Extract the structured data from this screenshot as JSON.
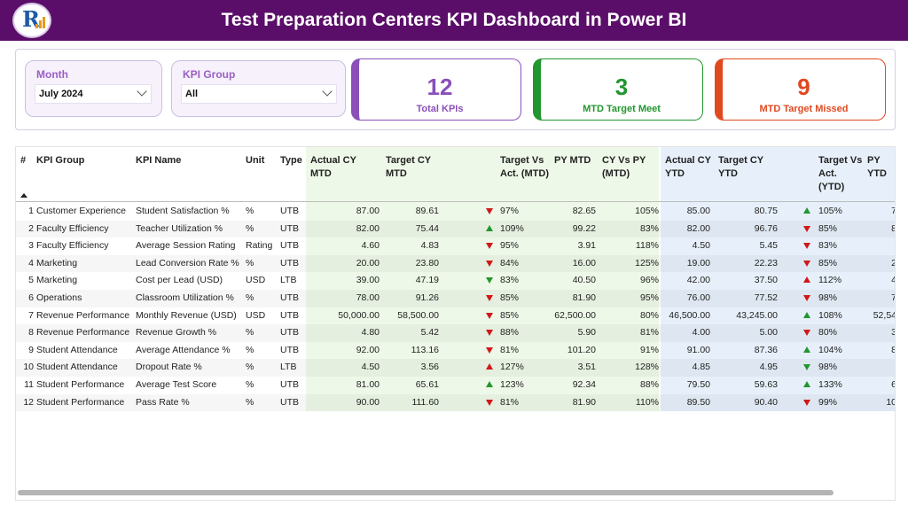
{
  "header": {
    "title": "Test Preparation Centers KPI Dashboard in Power BI",
    "colors": {
      "header_bg": "#5b0e69",
      "accent": "#9a5fc4"
    }
  },
  "filters": {
    "month": {
      "label": "Month",
      "value": "July 2024"
    },
    "kpi_group": {
      "label": "KPI Group",
      "value": "All"
    }
  },
  "cards": [
    {
      "value": "12",
      "label": "Total KPIs",
      "color": "#8a4fb8"
    },
    {
      "value": "3",
      "label": "MTD Target Meet",
      "color": "#22962f"
    },
    {
      "value": "9",
      "label": "MTD Target Missed",
      "color": "#e0491f"
    }
  ],
  "table": {
    "headers": [
      "#",
      "KPI Group",
      "KPI Name",
      "Unit",
      "Type",
      "Actual CY MTD",
      "Target CY MTD",
      "Target Vs Act. (MTD)",
      "PY MTD",
      "CY Vs PY (MTD)",
      "Actual CY YTD",
      "Target CY YTD",
      "Target Vs Act. (YTD)",
      "PY YTD"
    ],
    "rows": [
      {
        "n": "1",
        "group": "Customer Experience",
        "name": "Student Satisfaction %",
        "unit": "%",
        "type": "UTB",
        "act_mtd": "87.00",
        "tgt_mtd": "89.61",
        "mtd_icon": "down-red",
        "mtd_pct": "97%",
        "py_mtd": "82.65",
        "cy_py": "105%",
        "act_ytd": "85.00",
        "tgt_ytd": "80.75",
        "ytd_icon": "up-green",
        "ytd_pct": "105%",
        "py_ytd": "7"
      },
      {
        "n": "2",
        "group": "Faculty Efficiency",
        "name": "Teacher Utilization %",
        "unit": "%",
        "type": "UTB",
        "act_mtd": "82.00",
        "tgt_mtd": "75.44",
        "mtd_icon": "up-green",
        "mtd_pct": "109%",
        "py_mtd": "99.22",
        "cy_py": "83%",
        "act_ytd": "82.00",
        "tgt_ytd": "96.76",
        "ytd_icon": "down-red",
        "ytd_pct": "85%",
        "py_ytd": "8"
      },
      {
        "n": "3",
        "group": "Faculty Efficiency",
        "name": "Average Session Rating",
        "unit": "Rating",
        "type": "UTB",
        "act_mtd": "4.60",
        "tgt_mtd": "4.83",
        "mtd_icon": "down-red",
        "mtd_pct": "95%",
        "py_mtd": "3.91",
        "cy_py": "118%",
        "act_ytd": "4.50",
        "tgt_ytd": "5.45",
        "ytd_icon": "down-red",
        "ytd_pct": "83%",
        "py_ytd": ""
      },
      {
        "n": "4",
        "group": "Marketing",
        "name": "Lead Conversion Rate %",
        "unit": "%",
        "type": "UTB",
        "act_mtd": "20.00",
        "tgt_mtd": "23.80",
        "mtd_icon": "down-red",
        "mtd_pct": "84%",
        "py_mtd": "16.00",
        "cy_py": "125%",
        "act_ytd": "19.00",
        "tgt_ytd": "22.23",
        "ytd_icon": "down-red",
        "ytd_pct": "85%",
        "py_ytd": "2"
      },
      {
        "n": "5",
        "group": "Marketing",
        "name": "Cost per Lead (USD)",
        "unit": "USD",
        "type": "LTB",
        "act_mtd": "39.00",
        "tgt_mtd": "47.19",
        "mtd_icon": "down-green",
        "mtd_pct": "83%",
        "py_mtd": "40.50",
        "cy_py": "96%",
        "act_ytd": "42.00",
        "tgt_ytd": "37.50",
        "ytd_icon": "up-red",
        "ytd_pct": "112%",
        "py_ytd": "4"
      },
      {
        "n": "6",
        "group": "Operations",
        "name": "Classroom Utilization %",
        "unit": "%",
        "type": "UTB",
        "act_mtd": "78.00",
        "tgt_mtd": "91.26",
        "mtd_icon": "down-red",
        "mtd_pct": "85%",
        "py_mtd": "81.90",
        "cy_py": "95%",
        "act_ytd": "76.00",
        "tgt_ytd": "77.52",
        "ytd_icon": "down-red",
        "ytd_pct": "98%",
        "py_ytd": "7"
      },
      {
        "n": "7",
        "group": "Revenue Performance",
        "name": "Monthly Revenue (USD)",
        "unit": "USD",
        "type": "UTB",
        "act_mtd": "50,000.00",
        "tgt_mtd": "58,500.00",
        "mtd_icon": "down-red",
        "mtd_pct": "85%",
        "py_mtd": "62,500.00",
        "cy_py": "80%",
        "act_ytd": "46,500.00",
        "tgt_ytd": "43,245.00",
        "ytd_icon": "up-green",
        "ytd_pct": "108%",
        "py_ytd": "52,54"
      },
      {
        "n": "8",
        "group": "Revenue Performance",
        "name": "Revenue Growth %",
        "unit": "%",
        "type": "UTB",
        "act_mtd": "4.80",
        "tgt_mtd": "5.42",
        "mtd_icon": "down-red",
        "mtd_pct": "88%",
        "py_mtd": "5.90",
        "cy_py": "81%",
        "act_ytd": "4.00",
        "tgt_ytd": "5.00",
        "ytd_icon": "down-red",
        "ytd_pct": "80%",
        "py_ytd": "3"
      },
      {
        "n": "9",
        "group": "Student Attendance",
        "name": "Average Attendance %",
        "unit": "%",
        "type": "UTB",
        "act_mtd": "92.00",
        "tgt_mtd": "113.16",
        "mtd_icon": "down-red",
        "mtd_pct": "81%",
        "py_mtd": "101.20",
        "cy_py": "91%",
        "act_ytd": "91.00",
        "tgt_ytd": "87.36",
        "ytd_icon": "up-green",
        "ytd_pct": "104%",
        "py_ytd": "8"
      },
      {
        "n": "10",
        "group": "Student Attendance",
        "name": "Dropout Rate %",
        "unit": "%",
        "type": "LTB",
        "act_mtd": "4.50",
        "tgt_mtd": "3.56",
        "mtd_icon": "up-red",
        "mtd_pct": "127%",
        "py_mtd": "3.51",
        "cy_py": "128%",
        "act_ytd": "4.85",
        "tgt_ytd": "4.95",
        "ytd_icon": "down-green",
        "ytd_pct": "98%",
        "py_ytd": ""
      },
      {
        "n": "11",
        "group": "Student Performance",
        "name": "Average Test Score",
        "unit": "%",
        "type": "UTB",
        "act_mtd": "81.00",
        "tgt_mtd": "65.61",
        "mtd_icon": "up-green",
        "mtd_pct": "123%",
        "py_mtd": "92.34",
        "cy_py": "88%",
        "act_ytd": "79.50",
        "tgt_ytd": "59.63",
        "ytd_icon": "up-green",
        "ytd_pct": "133%",
        "py_ytd": "6"
      },
      {
        "n": "12",
        "group": "Student Performance",
        "name": "Pass Rate %",
        "unit": "%",
        "type": "UTB",
        "act_mtd": "90.00",
        "tgt_mtd": "111.60",
        "mtd_icon": "down-red",
        "mtd_pct": "81%",
        "py_mtd": "81.90",
        "cy_py": "110%",
        "act_ytd": "89.50",
        "tgt_ytd": "90.40",
        "ytd_icon": "down-red",
        "ytd_pct": "99%",
        "py_ytd": "10"
      }
    ]
  }
}
